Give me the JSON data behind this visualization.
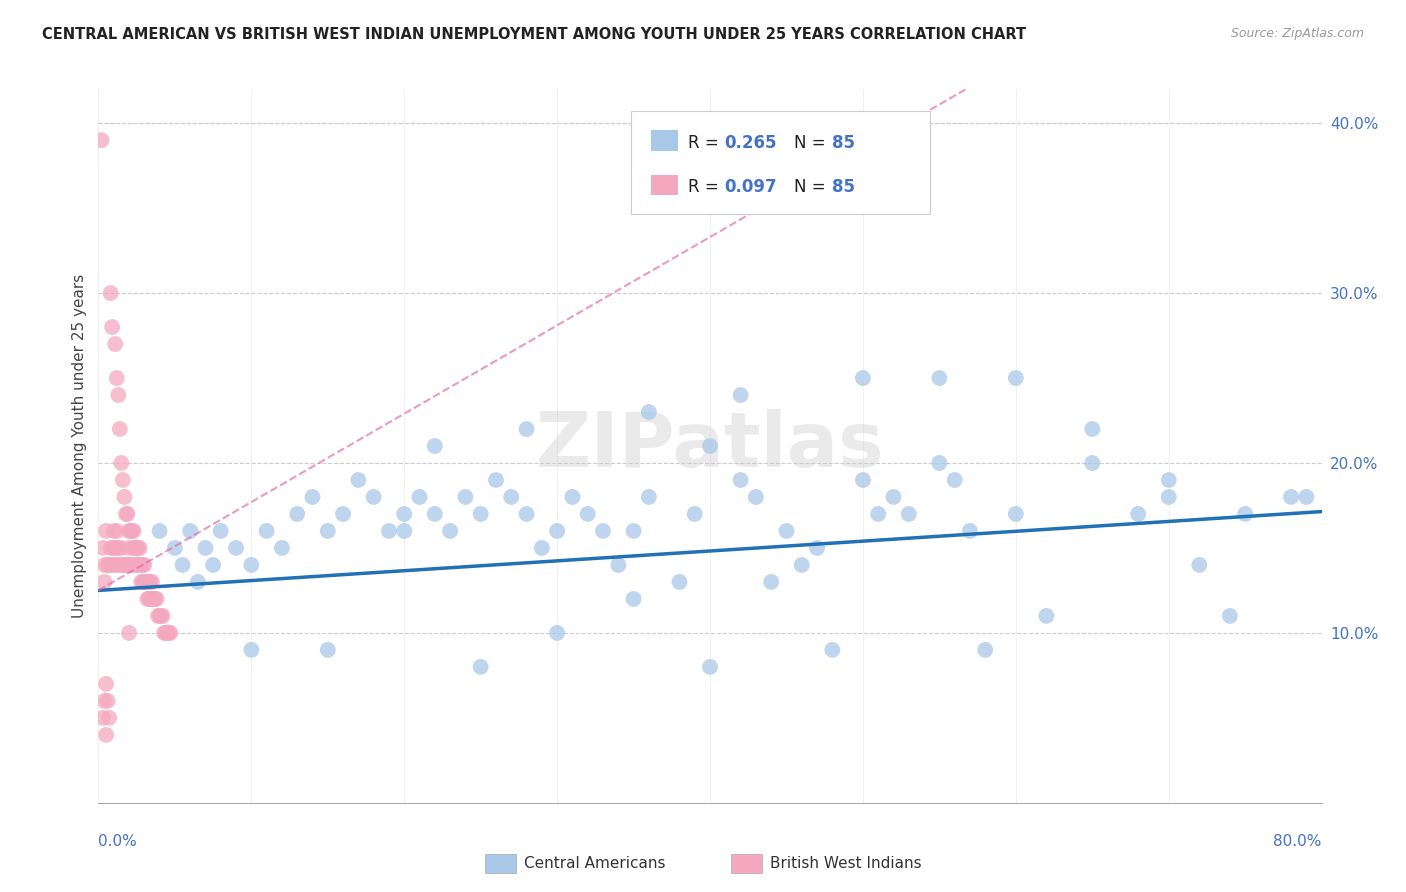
{
  "title": "CENTRAL AMERICAN VS BRITISH WEST INDIAN UNEMPLOYMENT AMONG YOUTH UNDER 25 YEARS CORRELATION CHART",
  "source": "Source: ZipAtlas.com",
  "ylabel": "Unemployment Among Youth under 25 years",
  "yticks": [
    0.0,
    0.1,
    0.2,
    0.3,
    0.4
  ],
  "ytick_labels": [
    "",
    "10.0%",
    "20.0%",
    "30.0%",
    "40.0%"
  ],
  "xlim": [
    0.0,
    0.8
  ],
  "ylim": [
    0.0,
    0.42
  ],
  "legend_ca": "Central Americans",
  "legend_bwi": "British West Indians",
  "blue_color": "#a8c8e8",
  "pink_color": "#f4a8c0",
  "blue_line_color": "#2171b5",
  "pink_line_color": "#de6fa8",
  "watermark": "ZIPatlas",
  "blue_slope": 0.058,
  "blue_intercept": 0.125,
  "pink_slope": 0.52,
  "pink_intercept": 0.125,
  "ca_x": [
    0.02,
    0.025,
    0.03,
    0.04,
    0.05,
    0.055,
    0.06,
    0.065,
    0.07,
    0.075,
    0.08,
    0.09,
    0.1,
    0.11,
    0.12,
    0.13,
    0.14,
    0.15,
    0.16,
    0.17,
    0.18,
    0.19,
    0.2,
    0.21,
    0.22,
    0.23,
    0.24,
    0.25,
    0.26,
    0.27,
    0.28,
    0.29,
    0.3,
    0.31,
    0.32,
    0.33,
    0.34,
    0.35,
    0.36,
    0.38,
    0.39,
    0.4,
    0.42,
    0.43,
    0.44,
    0.45,
    0.46,
    0.47,
    0.48,
    0.5,
    0.51,
    0.52,
    0.53,
    0.55,
    0.56,
    0.57,
    0.58,
    0.6,
    0.62,
    0.65,
    0.68,
    0.7,
    0.72,
    0.74,
    0.75,
    0.78,
    0.79,
    0.35,
    0.3,
    0.4,
    0.25,
    0.2,
    0.15,
    0.1,
    0.22,
    0.28,
    0.36,
    0.42,
    0.5,
    0.55,
    0.6,
    0.65,
    0.7
  ],
  "ca_y": [
    0.14,
    0.15,
    0.13,
    0.16,
    0.15,
    0.14,
    0.16,
    0.13,
    0.15,
    0.14,
    0.16,
    0.15,
    0.14,
    0.16,
    0.15,
    0.17,
    0.18,
    0.16,
    0.17,
    0.19,
    0.18,
    0.16,
    0.17,
    0.18,
    0.17,
    0.16,
    0.18,
    0.17,
    0.19,
    0.18,
    0.17,
    0.15,
    0.16,
    0.18,
    0.17,
    0.16,
    0.14,
    0.16,
    0.18,
    0.13,
    0.17,
    0.21,
    0.19,
    0.18,
    0.13,
    0.16,
    0.14,
    0.15,
    0.09,
    0.19,
    0.17,
    0.18,
    0.17,
    0.2,
    0.19,
    0.16,
    0.09,
    0.17,
    0.11,
    0.22,
    0.17,
    0.19,
    0.14,
    0.11,
    0.17,
    0.18,
    0.18,
    0.12,
    0.1,
    0.08,
    0.08,
    0.16,
    0.09,
    0.09,
    0.21,
    0.22,
    0.23,
    0.24,
    0.25,
    0.25,
    0.25,
    0.2,
    0.18
  ],
  "bwi_x": [
    0.002,
    0.003,
    0.004,
    0.004,
    0.005,
    0.005,
    0.006,
    0.006,
    0.007,
    0.007,
    0.008,
    0.008,
    0.009,
    0.009,
    0.01,
    0.01,
    0.01,
    0.011,
    0.011,
    0.012,
    0.012,
    0.013,
    0.013,
    0.014,
    0.014,
    0.015,
    0.015,
    0.016,
    0.016,
    0.017,
    0.017,
    0.018,
    0.018,
    0.019,
    0.019,
    0.02,
    0.02,
    0.021,
    0.021,
    0.022,
    0.022,
    0.023,
    0.023,
    0.024,
    0.024,
    0.025,
    0.025,
    0.026,
    0.026,
    0.027,
    0.027,
    0.028,
    0.028,
    0.029,
    0.029,
    0.03,
    0.03,
    0.031,
    0.031,
    0.032,
    0.032,
    0.033,
    0.033,
    0.034,
    0.034,
    0.035,
    0.035,
    0.036,
    0.036,
    0.037,
    0.038,
    0.039,
    0.04,
    0.041,
    0.042,
    0.043,
    0.044,
    0.045,
    0.046,
    0.047,
    0.003,
    0.004,
    0.005,
    0.012,
    0.02
  ],
  "bwi_y": [
    0.39,
    0.15,
    0.14,
    0.13,
    0.16,
    0.07,
    0.14,
    0.06,
    0.14,
    0.05,
    0.3,
    0.15,
    0.28,
    0.14,
    0.16,
    0.15,
    0.14,
    0.27,
    0.15,
    0.25,
    0.14,
    0.24,
    0.15,
    0.22,
    0.14,
    0.2,
    0.15,
    0.19,
    0.14,
    0.18,
    0.14,
    0.17,
    0.14,
    0.17,
    0.14,
    0.16,
    0.15,
    0.16,
    0.14,
    0.16,
    0.14,
    0.16,
    0.15,
    0.15,
    0.14,
    0.15,
    0.14,
    0.15,
    0.14,
    0.15,
    0.14,
    0.14,
    0.13,
    0.14,
    0.13,
    0.14,
    0.13,
    0.13,
    0.13,
    0.13,
    0.12,
    0.13,
    0.12,
    0.13,
    0.12,
    0.13,
    0.12,
    0.12,
    0.12,
    0.12,
    0.12,
    0.11,
    0.11,
    0.11,
    0.11,
    0.1,
    0.1,
    0.1,
    0.1,
    0.1,
    0.05,
    0.06,
    0.04,
    0.16,
    0.1
  ]
}
